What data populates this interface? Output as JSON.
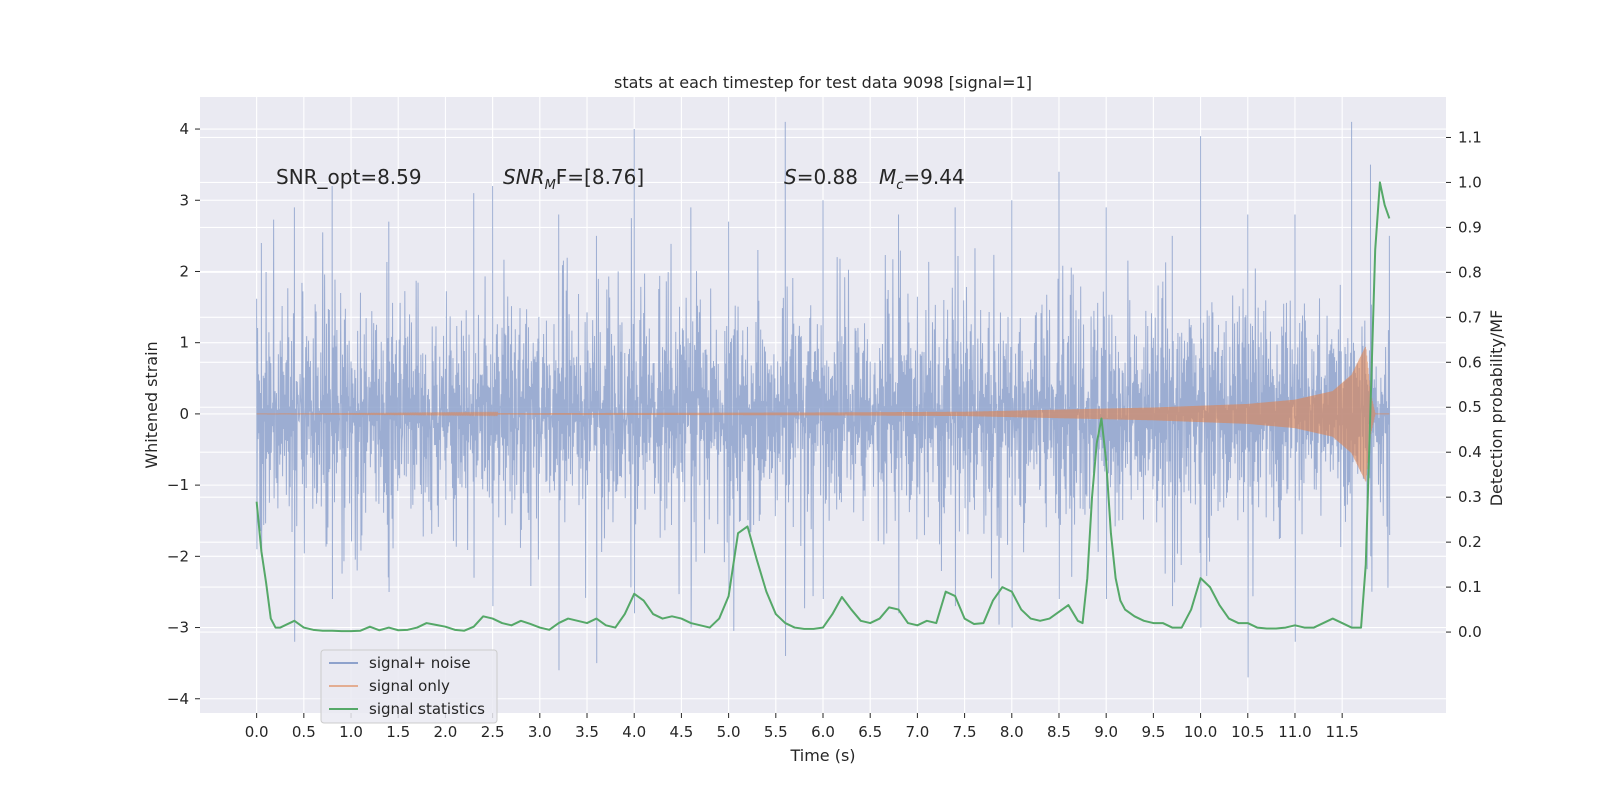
{
  "chart_data": {
    "type": "line",
    "title": "stats at each timestep for test data 9098 [signal=1]",
    "xlabel": "Time (s)",
    "ylabel_left": "Whitened strain",
    "ylabel_right": "Detection probability/MF",
    "xlim": [
      -0.6,
      12.6
    ],
    "ylim_left": [
      -4.2,
      4.45
    ],
    "ylim_right": [
      -0.18,
      1.19
    ],
    "x_ticks": [
      0.0,
      0.5,
      1.0,
      1.5,
      2.0,
      2.5,
      3.0,
      3.5,
      4.0,
      4.5,
      5.0,
      5.5,
      6.0,
      6.5,
      7.0,
      7.5,
      8.0,
      8.5,
      9.0,
      9.5,
      10.0,
      10.5,
      11.0,
      11.5
    ],
    "x_tick_labels": [
      "0.0",
      "0.5",
      "1.0",
      "1.5",
      "2.0",
      "2.5",
      "3.0",
      "3.5",
      "4.0",
      "4.5",
      "5.0",
      "5.5",
      "6.0",
      "6.5",
      "7.0",
      "7.5",
      "8.0",
      "8.5",
      "9.0",
      "9.5",
      "10.0",
      "10.5",
      "11.0",
      "11.5"
    ],
    "y_left_ticks": [
      -4,
      -3,
      -2,
      -1,
      0,
      1,
      2,
      3,
      4
    ],
    "y_left_tick_labels": [
      "−4",
      "−3",
      "−2",
      "−1",
      "0",
      "1",
      "2",
      "3",
      "4"
    ],
    "y_right_ticks": [
      0.0,
      0.1,
      0.2,
      0.3,
      0.4,
      0.5,
      0.6,
      0.7,
      0.8,
      0.9,
      1.0,
      1.1
    ],
    "y_right_tick_labels": [
      "0.0",
      "0.1",
      "0.2",
      "0.3",
      "0.4",
      "0.5",
      "0.6",
      "0.7",
      "0.8",
      "0.9",
      "1.0",
      "1.1"
    ],
    "annotations": {
      "snr_opt": "SNR_opt=8.59",
      "snr_mf_main": "SNR",
      "snr_mf_sub": "M",
      "snr_mf_rest": "F=[8.76]",
      "s_main": "S",
      "s_rest": "=0.88",
      "mc_main": "M",
      "mc_sub": "c",
      "mc_rest": "=9.44"
    },
    "legend": {
      "position": "lower-left",
      "entries": [
        "signal+ noise",
        "signal only",
        "signal statistics"
      ]
    },
    "series": [
      {
        "name": "signal+ noise",
        "axis": "left",
        "color": "#8ea2cc",
        "style": "dense noise, band approx ±1.3 with excursions to ±4",
        "x_range": [
          0.0,
          12.0
        ],
        "envelope_peaks": [
          [
            0.0,
            1.3,
            -1.9
          ],
          [
            0.05,
            2.4,
            -2.0
          ],
          [
            0.4,
            2.9,
            -3.2
          ],
          [
            0.8,
            3.2,
            -2.6
          ],
          [
            1.4,
            2.7,
            -2.5
          ],
          [
            2.3,
            3.1,
            -2.3
          ],
          [
            2.5,
            3.2,
            -2.7
          ],
          [
            3.2,
            2.8,
            -3.6
          ],
          [
            3.6,
            2.5,
            -3.5
          ],
          [
            4.0,
            4.0,
            -2.8
          ],
          [
            4.6,
            2.9,
            -3.0
          ],
          [
            5.0,
            2.7,
            -2.5
          ],
          [
            5.6,
            4.1,
            -3.4
          ],
          [
            6.0,
            3.0,
            -2.6
          ],
          [
            6.8,
            2.8,
            -2.8
          ],
          [
            7.4,
            2.9,
            -2.7
          ],
          [
            8.0,
            3.0,
            -3.0
          ],
          [
            8.5,
            3.4,
            -2.6
          ],
          [
            9.0,
            2.9,
            -2.6
          ],
          [
            9.7,
            2.5,
            -2.7
          ],
          [
            10.0,
            3.9,
            -3.0
          ],
          [
            10.5,
            2.8,
            -3.7
          ],
          [
            11.0,
            2.8,
            -3.2
          ],
          [
            11.6,
            4.1,
            -3.0
          ],
          [
            11.8,
            3.5,
            -2.0
          ],
          [
            12.0,
            2.5,
            -1.7
          ]
        ]
      },
      {
        "name": "signal only",
        "axis": "left",
        "color": "#dd8452",
        "style": "chirp: amplitude grows from ~0 toward merger near 11.8 s",
        "amplitude_points": [
          [
            0.0,
            0.0
          ],
          [
            6.0,
            0.02
          ],
          [
            7.5,
            0.03
          ],
          [
            8.5,
            0.06
          ],
          [
            9.5,
            0.09
          ],
          [
            10.5,
            0.14
          ],
          [
            11.0,
            0.2
          ],
          [
            11.4,
            0.32
          ],
          [
            11.6,
            0.55
          ],
          [
            11.75,
            0.95
          ],
          [
            11.8,
            0.3
          ],
          [
            11.85,
            0.0
          ],
          [
            12.0,
            0.0
          ]
        ]
      },
      {
        "name": "signal statistics",
        "axis": "right",
        "color": "#55a868",
        "x": [
          0.0,
          0.05,
          0.1,
          0.15,
          0.2,
          0.25,
          0.3,
          0.4,
          0.5,
          0.6,
          0.7,
          0.8,
          0.9,
          1.0,
          1.1,
          1.2,
          1.3,
          1.4,
          1.5,
          1.6,
          1.7,
          1.8,
          1.9,
          2.0,
          2.1,
          2.2,
          2.3,
          2.4,
          2.5,
          2.6,
          2.7,
          2.8,
          2.9,
          3.0,
          3.1,
          3.2,
          3.3,
          3.4,
          3.5,
          3.6,
          3.7,
          3.8,
          3.9,
          4.0,
          4.1,
          4.2,
          4.3,
          4.4,
          4.5,
          4.6,
          4.7,
          4.8,
          4.9,
          5.0,
          5.1,
          5.2,
          5.3,
          5.4,
          5.5,
          5.6,
          5.7,
          5.8,
          5.9,
          6.0,
          6.1,
          6.2,
          6.3,
          6.4,
          6.5,
          6.6,
          6.7,
          6.8,
          6.9,
          7.0,
          7.1,
          7.2,
          7.3,
          7.4,
          7.5,
          7.6,
          7.7,
          7.8,
          7.9,
          8.0,
          8.1,
          8.2,
          8.3,
          8.4,
          8.5,
          8.6,
          8.7,
          8.75,
          8.8,
          8.85,
          8.9,
          8.95,
          9.0,
          9.05,
          9.1,
          9.15,
          9.2,
          9.3,
          9.4,
          9.5,
          9.6,
          9.7,
          9.8,
          9.9,
          10.0,
          10.1,
          10.2,
          10.3,
          10.4,
          10.5,
          10.6,
          10.7,
          10.8,
          10.9,
          11.0,
          11.1,
          11.2,
          11.3,
          11.4,
          11.5,
          11.6,
          11.7,
          11.75,
          11.8,
          11.85,
          11.9,
          11.95,
          12.0
        ],
        "values": [
          0.29,
          0.18,
          0.11,
          0.03,
          0.01,
          0.01,
          0.015,
          0.025,
          0.01,
          0.005,
          0.003,
          0.003,
          0.002,
          0.002,
          0.003,
          0.012,
          0.004,
          0.01,
          0.004,
          0.005,
          0.01,
          0.02,
          0.016,
          0.012,
          0.005,
          0.003,
          0.012,
          0.035,
          0.03,
          0.02,
          0.015,
          0.025,
          0.018,
          0.01,
          0.005,
          0.02,
          0.03,
          0.025,
          0.02,
          0.03,
          0.015,
          0.01,
          0.04,
          0.085,
          0.07,
          0.04,
          0.03,
          0.035,
          0.03,
          0.02,
          0.015,
          0.01,
          0.03,
          0.08,
          0.22,
          0.235,
          0.16,
          0.09,
          0.04,
          0.02,
          0.01,
          0.007,
          0.007,
          0.01,
          0.04,
          0.078,
          0.05,
          0.025,
          0.02,
          0.03,
          0.055,
          0.05,
          0.02,
          0.015,
          0.025,
          0.02,
          0.09,
          0.08,
          0.03,
          0.018,
          0.02,
          0.07,
          0.1,
          0.09,
          0.05,
          0.03,
          0.025,
          0.03,
          0.045,
          0.06,
          0.025,
          0.02,
          0.12,
          0.3,
          0.42,
          0.475,
          0.38,
          0.22,
          0.12,
          0.07,
          0.05,
          0.035,
          0.025,
          0.02,
          0.02,
          0.01,
          0.01,
          0.05,
          0.12,
          0.1,
          0.06,
          0.03,
          0.02,
          0.02,
          0.01,
          0.008,
          0.008,
          0.01,
          0.015,
          0.01,
          0.01,
          0.02,
          0.03,
          0.02,
          0.01,
          0.01,
          0.15,
          0.5,
          0.85,
          1.0,
          0.95,
          0.92
        ]
      }
    ]
  },
  "colors": {
    "plot_bg": "#eaeaf2",
    "grid": "#ffffff",
    "noise": "#8ea2cc",
    "signal": "#dd8452",
    "stats": "#55a868",
    "text": "#262626"
  }
}
